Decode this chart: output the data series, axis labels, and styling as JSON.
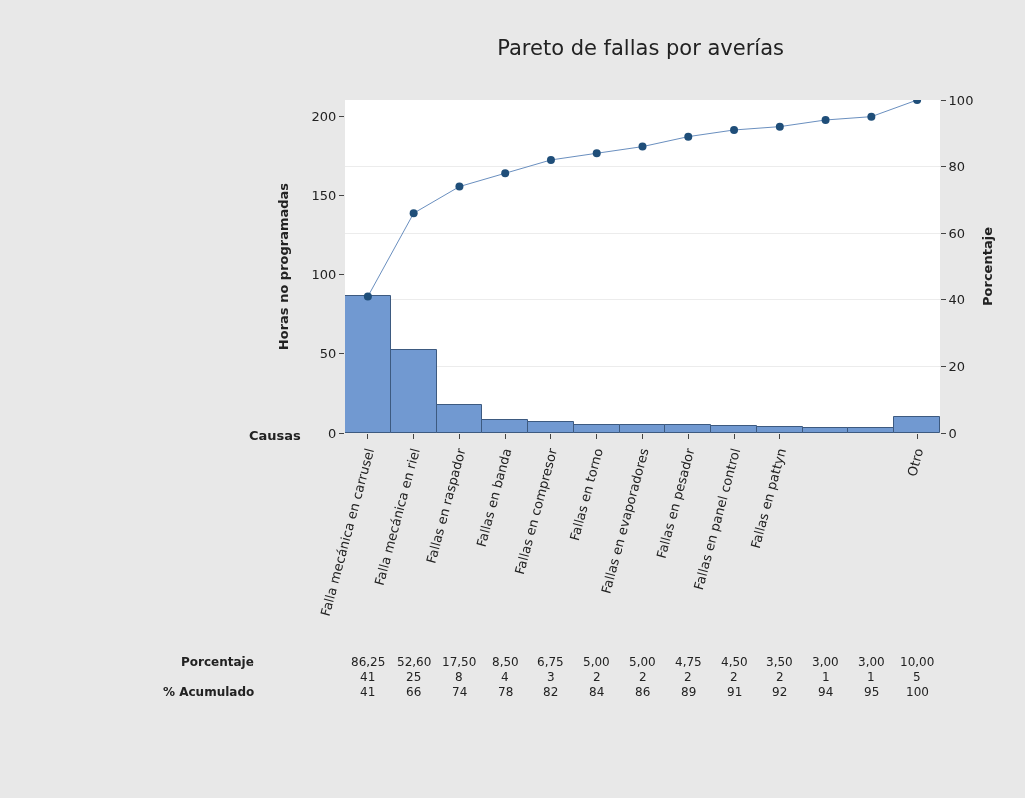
{
  "chart_data": {
    "type": "bar",
    "title": "Pareto de fallas por averías",
    "xlabel": "Causas",
    "ylabel": "Horas no programadas",
    "y2label": "Porcentaje",
    "categories": [
      "Falla mecánica en carrusel",
      "Falla mecánica en riel",
      "Fallas en raspador",
      "Fallas en banda",
      "Fallas en compresor",
      "Fallas en torno",
      "Fallas en evaporadores",
      "Fallas en pesador",
      "Fallas en panel control",
      "Fallas en pattyn",
      null,
      null,
      "Otro"
    ],
    "series": [
      {
        "color": "#7199d1",
        "values": [
          86.25,
          52.6,
          17.5,
          8.5,
          6.75,
          5.0,
          5.0,
          4.75,
          4.5,
          3.5,
          3.0,
          3.0,
          10.0
        ],
        "value_labels": [
          "86,25",
          "52,60",
          "17,50",
          "8,50",
          "6,75",
          "5,00",
          "5,00",
          "4,75",
          "4,50",
          "3,50",
          "3,00",
          "3,00",
          "10,00"
        ]
      },
      {
        "type": "line",
        "axis": "y2",
        "color": "#1f4e79",
        "marker": "circle",
        "values": [
          41,
          66,
          74,
          78,
          82,
          84,
          86,
          89,
          91,
          92,
          94,
          95,
          100
        ],
        "value_labels": [
          "41",
          "66",
          "74",
          "78",
          "82",
          "84",
          "86",
          "89",
          "91",
          "92",
          "94",
          "95",
          "100"
        ]
      }
    ],
    "annotations": [
      "Porcentaje",
      "% Acumulado",
      "41",
      "25",
      "8",
      "4",
      "3",
      "2",
      "2",
      "2",
      "2",
      "2",
      "1",
      "1",
      "5"
    ],
    "ylim": [
      0,
      210.35
    ],
    "yticks": [
      0,
      50,
      100,
      150,
      200
    ],
    "y2lim": [
      0,
      100
    ],
    "y2ticks": [
      0,
      20,
      40,
      60,
      80,
      100
    ],
    "grid": true
  }
}
